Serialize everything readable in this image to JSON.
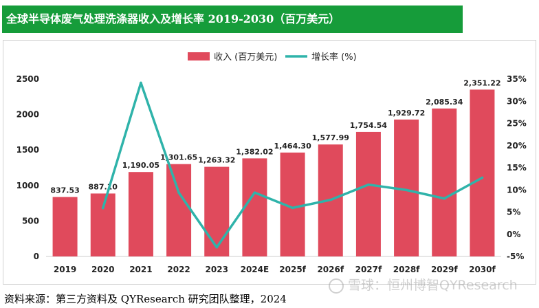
{
  "title": "全球半导体废气处理洗涤器收入及增长率 2019-2030（百万美元）",
  "footer": "资料来源：第三方资料及 QYResearch 研究团队整理，2024",
  "watermark": "雪球：恒州博智QYResearch",
  "colors": {
    "title_bg": "#169c3a",
    "bar": "#e04a5c",
    "line": "#2fb3aa"
  },
  "chart_data": {
    "type": "bar",
    "categories": [
      "2019",
      "2020",
      "2021",
      "2022",
      "2023",
      "2024E",
      "2025f",
      "2026f",
      "2027f",
      "2028f",
      "2029f",
      "2030f"
    ],
    "series": [
      {
        "name": "收入 (百万美元)",
        "type": "bar",
        "axis": "left",
        "values": [
          837.53,
          887.1,
          1190.05,
          1301.65,
          1263.32,
          1382.02,
          1464.3,
          1577.99,
          1754.54,
          1929.72,
          2085.34,
          2351.22
        ],
        "labels": [
          "837.53",
          "887.10",
          "1,190.05",
          "1,301.65",
          "1,263.32",
          "1,382.02",
          "1,464.30",
          "1,577.99",
          "1,754.54",
          "1,929.72",
          "2,085.34",
          "2,351.22"
        ]
      },
      {
        "name": "增长率 (%)",
        "type": "line",
        "axis": "right",
        "values": [
          null,
          5.92,
          34.15,
          9.38,
          -2.94,
          9.4,
          5.95,
          7.76,
          11.19,
          9.98,
          8.06,
          12.75
        ]
      }
    ],
    "y_left": {
      "lim": [
        0,
        2500
      ],
      "ticks": [
        "0",
        "500",
        "1000",
        "1500",
        "2000",
        "2500"
      ]
    },
    "y_right": {
      "lim": [
        -5,
        35
      ],
      "ticks": [
        "-5%",
        "0%",
        "5%",
        "10%",
        "15%",
        "20%",
        "25%",
        "30%",
        "35%"
      ]
    },
    "legend_position": "top-center",
    "grid": false
  }
}
